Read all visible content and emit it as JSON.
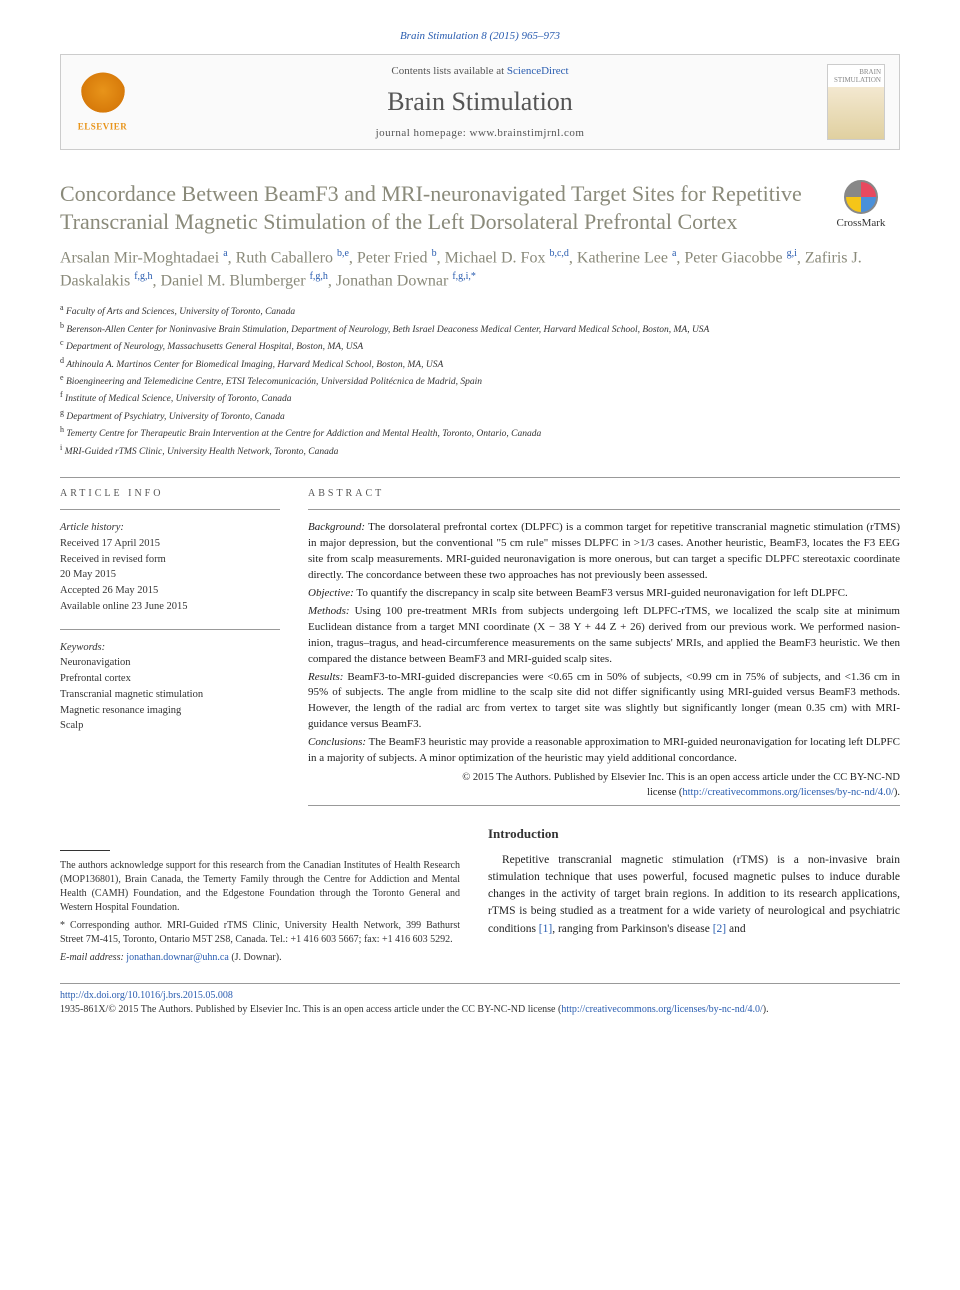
{
  "header": {
    "citation": "Brain Stimulation 8 (2015) 965–973",
    "contents_prefix": "Contents lists available at ",
    "contents_link": "ScienceDirect",
    "journal_name": "Brain Stimulation",
    "homepage_label": "journal homepage: ",
    "homepage_url": "www.brainstimjrnl.com",
    "elsevier": "ELSEVIER",
    "cover_text": "BRAIN STIMULATION"
  },
  "crossmark": "CrossMark",
  "title": "Concordance Between BeamF3 and MRI-neuronavigated Target Sites for Repetitive Transcranial Magnetic Stimulation of the Left Dorsolateral Prefrontal Cortex",
  "authors_html": "Arsalan Mir-Moghtadaei <sup>a</sup>, Ruth Caballero <sup>b,e</sup>, Peter Fried <sup>b</sup>, Michael D. Fox <sup>b,c,d</sup>, Katherine Lee <sup>a</sup>, Peter Giacobbe <sup>g,i</sup>, Zafiris J. Daskalakis <sup>f,g,h</sup>, Daniel M. Blumberger <sup>f,g,h</sup>, Jonathan Downar <sup>f,g,i,*</sup>",
  "affiliations": [
    {
      "sup": "a",
      "text": "Faculty of Arts and Sciences, University of Toronto, Canada"
    },
    {
      "sup": "b",
      "text": "Berenson-Allen Center for Noninvasive Brain Stimulation, Department of Neurology, Beth Israel Deaconess Medical Center, Harvard Medical School, Boston, MA, USA"
    },
    {
      "sup": "c",
      "text": "Department of Neurology, Massachusetts General Hospital, Boston, MA, USA"
    },
    {
      "sup": "d",
      "text": "Athinoula A. Martinos Center for Biomedical Imaging, Harvard Medical School, Boston, MA, USA"
    },
    {
      "sup": "e",
      "text": "Bioengineering and Telemedicine Centre, ETSI Telecomunicación, Universidad Politécnica de Madrid, Spain"
    },
    {
      "sup": "f",
      "text": "Institute of Medical Science, University of Toronto, Canada"
    },
    {
      "sup": "g",
      "text": "Department of Psychiatry, University of Toronto, Canada"
    },
    {
      "sup": "h",
      "text": "Temerty Centre for Therapeutic Brain Intervention at the Centre for Addiction and Mental Health, Toronto, Ontario, Canada"
    },
    {
      "sup": "i",
      "text": "MRI-Guided rTMS Clinic, University Health Network, Toronto, Canada"
    }
  ],
  "article_info": {
    "head": "ARTICLE INFO",
    "history_label": "Article history:",
    "history": [
      "Received 17 April 2015",
      "Received in revised form",
      "20 May 2015",
      "Accepted 26 May 2015",
      "Available online 23 June 2015"
    ],
    "keywords_label": "Keywords:",
    "keywords": [
      "Neuronavigation",
      "Prefrontal cortex",
      "Transcranial magnetic stimulation",
      "Magnetic resonance imaging",
      "Scalp"
    ]
  },
  "abstract": {
    "head": "ABSTRACT",
    "sections": [
      {
        "label": "Background:",
        "text": " The dorsolateral prefrontal cortex (DLPFC) is a common target for repetitive transcranial magnetic stimulation (rTMS) in major depression, but the conventional \"5 cm rule\" misses DLPFC in >1/3 cases. Another heuristic, BeamF3, locates the F3 EEG site from scalp measurements. MRI-guided neuronavigation is more onerous, but can target a specific DLPFC stereotaxic coordinate directly. The concordance between these two approaches has not previously been assessed."
      },
      {
        "label": "Objective:",
        "text": " To quantify the discrepancy in scalp site between BeamF3 versus MRI-guided neuronavigation for left DLPFC."
      },
      {
        "label": "Methods:",
        "text": " Using 100 pre-treatment MRIs from subjects undergoing left DLPFC-rTMS, we localized the scalp site at minimum Euclidean distance from a target MNI coordinate (X − 38 Y + 44 Z + 26) derived from our previous work. We performed nasion-inion, tragus–tragus, and head-circumference measurements on the same subjects' MRIs, and applied the BeamF3 heuristic. We then compared the distance between BeamF3 and MRI-guided scalp sites."
      },
      {
        "label": "Results:",
        "text": " BeamF3-to-MRI-guided discrepancies were <0.65 cm in 50% of subjects, <0.99 cm in 75% of subjects, and <1.36 cm in 95% of subjects. The angle from midline to the scalp site did not differ significantly using MRI-guided versus BeamF3 methods. However, the length of the radial arc from vertex to target site was slightly but significantly longer (mean 0.35 cm) with MRI-guidance versus BeamF3."
      },
      {
        "label": "Conclusions:",
        "text": " The BeamF3 heuristic may provide a reasonable approximation to MRI-guided neuronavigation for locating left DLPFC in a majority of subjects. A minor optimization of the heuristic may yield additional concordance."
      }
    ],
    "copyright_line1": "© 2015 The Authors. Published by Elsevier Inc. This is an open access article under the CC BY-NC-ND",
    "copyright_line2_prefix": "license (",
    "copyright_link": "http://creativecommons.org/licenses/by-nc-nd/4.0/",
    "copyright_line2_suffix": ")."
  },
  "footnotes": {
    "ack": "The authors acknowledge support for this research from the Canadian Institutes of Health Research (MOP136801), Brain Canada, the Temerty Family through the Centre for Addiction and Mental Health (CAMH) Foundation, and the Edgestone Foundation through the Toronto General and Western Hospital Foundation.",
    "corr": "* Corresponding author. MRI-Guided rTMS Clinic, University Health Network, 399 Bathurst Street 7M-415, Toronto, Ontario M5T 2S8, Canada. Tel.: +1 416 603 5667; fax: +1 416 603 5292.",
    "email_label": "E-mail address: ",
    "email": "jonathan.downar@uhn.ca",
    "email_suffix": " (J. Downar)."
  },
  "introduction": {
    "head": "Introduction",
    "body_html": "Repetitive transcranial magnetic stimulation (rTMS) is a non-invasive brain stimulation technique that uses powerful, focused magnetic pulses to induce durable changes in the activity of target brain regions. In addition to its research applications, rTMS is being studied as a treatment for a wide variety of neurological and psychiatric conditions <span class=\"ref\">[1]</span>, ranging from Parkinson's disease <span class=\"ref\">[2]</span> and"
  },
  "footer": {
    "doi_url": "http://dx.doi.org/10.1016/j.brs.2015.05.008",
    "issn_line": "1935-861X/© 2015 The Authors. Published by Elsevier Inc. This is an open access article under the CC BY-NC-ND license (",
    "issn_link": "http://creativecommons.org/licenses/by-nc-nd/4.0/",
    "issn_suffix": ")."
  },
  "colors": {
    "link": "#2a5db0",
    "title": "#8a8a7a",
    "elsevier": "#e8941a"
  }
}
